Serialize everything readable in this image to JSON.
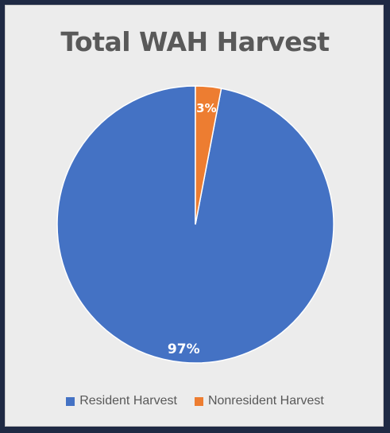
{
  "chart_data": {
    "type": "pie",
    "title": "Total WAH Harvest",
    "categories": [
      "Resident Harvest",
      "Nonresident Harvest"
    ],
    "values": [
      97,
      3
    ],
    "data_labels": [
      "97%",
      "3%"
    ],
    "colors": [
      "#4472c4",
      "#ed7d31"
    ],
    "legend": "bottom"
  }
}
